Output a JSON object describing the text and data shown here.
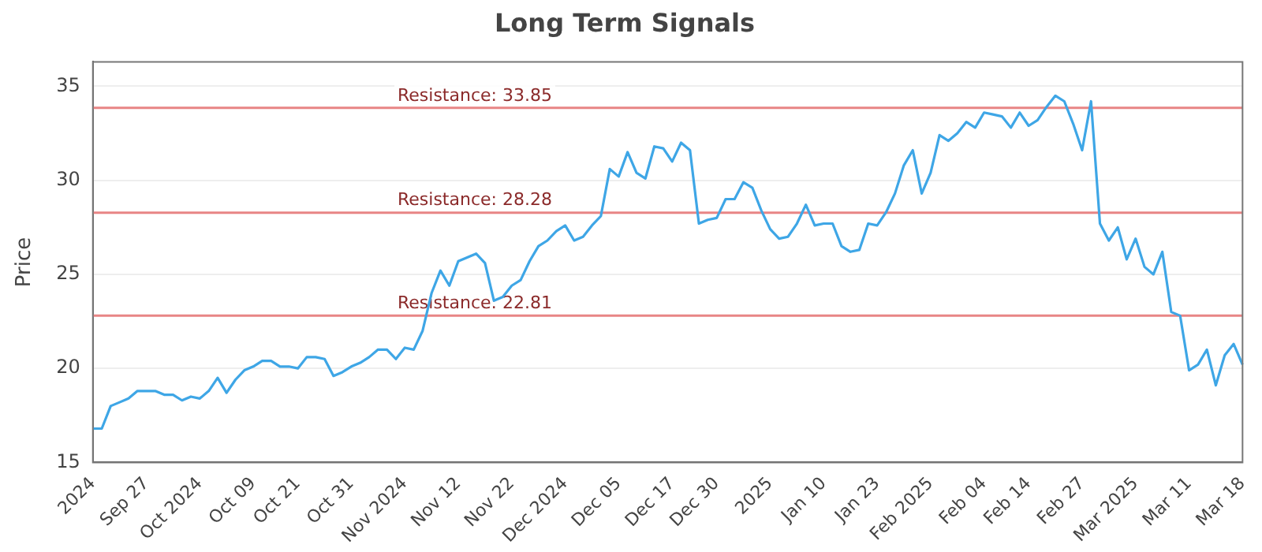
{
  "chart_data": {
    "type": "line",
    "title": "Long Term Signals",
    "ylabel": "Price",
    "categories": [
      "2024",
      null,
      null,
      null,
      null,
      null,
      "Sep 27",
      null,
      null,
      null,
      null,
      null,
      "Oct 2024",
      null,
      null,
      null,
      null,
      null,
      "Oct 09",
      null,
      null,
      null,
      null,
      "Oct 21",
      null,
      null,
      null,
      null,
      null,
      "Oct 31",
      null,
      null,
      null,
      null,
      null,
      "Nov 2024",
      null,
      null,
      null,
      null,
      null,
      "Nov 12",
      null,
      null,
      null,
      null,
      null,
      "Nov 22",
      null,
      null,
      null,
      null,
      null,
      "Dec 2024",
      null,
      null,
      null,
      null,
      null,
      "Dec 05",
      null,
      null,
      null,
      null,
      null,
      "Dec 17",
      null,
      null,
      null,
      null,
      "Dec 30",
      null,
      null,
      null,
      null,
      null,
      "2025",
      null,
      null,
      null,
      null,
      null,
      "Jan 10",
      null,
      null,
      null,
      null,
      null,
      "Jan 23",
      null,
      null,
      null,
      null,
      null,
      "Feb 2025",
      null,
      null,
      null,
      null,
      null,
      "Feb 04",
      null,
      null,
      null,
      null,
      "Feb 14",
      null,
      null,
      null,
      null,
      null,
      "Feb 27",
      null,
      null,
      null,
      null,
      null,
      "Mar 2025",
      null,
      null,
      null,
      null,
      null,
      "Mar 11",
      null,
      null,
      null,
      null,
      null,
      "Mar 18"
    ],
    "series": [
      {
        "color": "#3ea6e6",
        "values": [
          16.8,
          16.8,
          18.0,
          18.2,
          18.4,
          18.8,
          18.8,
          18.8,
          18.6,
          18.6,
          18.3,
          18.5,
          18.4,
          18.8,
          19.5,
          18.7,
          19.4,
          19.9,
          20.1,
          20.4,
          20.4,
          20.1,
          20.1,
          20.0,
          20.6,
          20.6,
          20.5,
          19.6,
          19.8,
          20.1,
          20.3,
          20.6,
          21.0,
          21.0,
          20.5,
          21.1,
          21.0,
          22.0,
          24.0,
          25.2,
          24.4,
          25.7,
          25.9,
          26.1,
          25.6,
          23.6,
          23.8,
          24.4,
          24.7,
          25.7,
          26.5,
          26.8,
          27.3,
          27.6,
          26.8,
          27.0,
          27.6,
          28.1,
          30.6,
          30.2,
          31.5,
          30.4,
          30.1,
          31.8,
          31.7,
          31.0,
          32.0,
          31.6,
          27.7,
          27.9,
          28.0,
          29.0,
          29.0,
          29.9,
          29.6,
          28.4,
          27.4,
          26.9,
          27.0,
          27.7,
          28.7,
          27.6,
          27.7,
          27.7,
          26.5,
          26.2,
          26.3,
          27.7,
          27.6,
          28.3,
          29.3,
          30.8,
          31.6,
          29.3,
          30.4,
          32.4,
          32.1,
          32.5,
          33.1,
          32.8,
          33.6,
          33.5,
          33.4,
          32.8,
          33.6,
          32.9,
          33.2,
          33.9,
          34.5,
          34.2,
          33.0,
          31.6,
          34.2,
          27.7,
          26.8,
          27.5,
          25.8,
          26.9,
          25.4,
          25.0,
          26.2,
          23.0,
          22.8,
          19.9,
          20.2,
          21.0,
          19.1,
          20.7,
          21.3,
          20.2
        ]
      }
    ],
    "ylim": [
      15,
      36.3
    ],
    "yticks": [
      15,
      20,
      25,
      30,
      35
    ],
    "grid": "y",
    "marker": "none",
    "line_style": "solid",
    "ref_lines": [
      {
        "axis": "y",
        "value": 33.85,
        "label": "Resistance: 33.85",
        "color": "#e88585"
      },
      {
        "axis": "y",
        "value": 28.28,
        "label": "Resistance: 28.28",
        "color": "#e88585"
      },
      {
        "axis": "y",
        "value": 22.81,
        "label": "Resistance: 22.81",
        "color": "#e88585"
      }
    ]
  }
}
